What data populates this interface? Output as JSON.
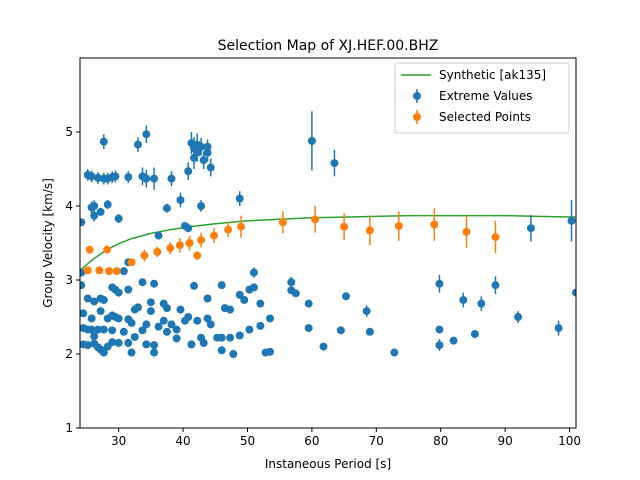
{
  "chart_data": {
    "type": "scatter",
    "title": "Selection Map of XJ.HEF.00.BHZ",
    "xlabel": "Instaneous Period [s]",
    "ylabel": "Group Velocity [km/s]",
    "xlim": [
      24,
      101
    ],
    "ylim": [
      1,
      6
    ],
    "xticks": [
      30,
      40,
      50,
      60,
      70,
      80,
      90,
      100
    ],
    "yticks": [
      1,
      2,
      3,
      4,
      5
    ],
    "legend_position": "top-right",
    "colors": {
      "extreme": "#1f77b4",
      "selected": "#ff7f0e",
      "synthetic": "#2ca02c"
    },
    "series": [
      {
        "name": "Synthetic [ak135]",
        "kind": "line",
        "x": [
          24,
          26,
          28,
          30,
          32,
          35,
          38,
          41,
          45,
          50,
          55,
          60,
          65,
          70,
          75,
          80,
          85,
          90,
          95,
          101
        ],
        "y": [
          3.13,
          3.28,
          3.4,
          3.49,
          3.56,
          3.63,
          3.68,
          3.72,
          3.76,
          3.8,
          3.82,
          3.84,
          3.85,
          3.86,
          3.87,
          3.87,
          3.87,
          3.87,
          3.86,
          3.85
        ]
      },
      {
        "name": "Extreme Values",
        "kind": "errorbar",
        "points": [
          [
            24.2,
            3.78,
            0.05
          ],
          [
            24.2,
            3.1,
            0.05
          ],
          [
            24.2,
            2.93,
            0.05
          ],
          [
            24.5,
            2.55,
            0.05
          ],
          [
            24.5,
            2.35,
            0.05
          ],
          [
            24.5,
            2.13,
            0.05
          ],
          [
            25.2,
            4.42,
            0.08
          ],
          [
            25.2,
            2.75,
            0.05
          ],
          [
            25.2,
            2.33,
            0.05
          ],
          [
            25.2,
            2.12,
            0.05
          ],
          [
            25.8,
            4.4,
            0.08
          ],
          [
            25.8,
            3.98,
            0.08
          ],
          [
            25.8,
            2.48,
            0.05
          ],
          [
            25.8,
            2.33,
            0.05
          ],
          [
            26.2,
            4.0,
            0.08
          ],
          [
            26.2,
            3.87,
            0.08
          ],
          [
            26.2,
            2.71,
            0.05
          ],
          [
            26.2,
            2.24,
            0.05
          ],
          [
            26.2,
            2.14,
            0.05
          ],
          [
            26.8,
            4.38,
            0.08
          ],
          [
            26.8,
            2.33,
            0.05
          ],
          [
            26.8,
            2.09,
            0.05
          ],
          [
            27.2,
            3.92,
            0.05
          ],
          [
            27.2,
            2.75,
            0.05
          ],
          [
            27.2,
            2.58,
            0.05
          ],
          [
            27.2,
            2.06,
            0.05
          ],
          [
            27.7,
            4.37,
            0.08
          ],
          [
            27.7,
            4.87,
            0.1
          ],
          [
            27.7,
            2.73,
            0.05
          ],
          [
            27.7,
            2.33,
            0.05
          ],
          [
            27.7,
            2.02,
            0.05
          ],
          [
            28.3,
            4.37,
            0.08
          ],
          [
            28.3,
            4.02,
            0.06
          ],
          [
            28.3,
            2.48,
            0.05
          ],
          [
            28.3,
            2.1,
            0.05
          ],
          [
            29.0,
            4.39,
            0.08
          ],
          [
            29.0,
            2.9,
            0.05
          ],
          [
            29.0,
            2.52,
            0.05
          ],
          [
            29.0,
            2.32,
            0.05
          ],
          [
            29.0,
            2.16,
            0.05
          ],
          [
            29.5,
            4.4,
            0.08
          ],
          [
            29.5,
            2.87,
            0.05
          ],
          [
            29.5,
            2.5,
            0.05
          ],
          [
            30.0,
            3.83,
            0.06
          ],
          [
            30.0,
            2.83,
            0.05
          ],
          [
            30.0,
            2.48,
            0.05
          ],
          [
            30.0,
            2.15,
            0.05
          ],
          [
            30.8,
            3.12,
            0.05
          ],
          [
            30.8,
            2.3,
            0.05
          ],
          [
            31.5,
            4.39,
            0.08
          ],
          [
            31.5,
            3.24,
            0.05
          ],
          [
            31.5,
            2.87,
            0.05
          ],
          [
            31.5,
            2.47,
            0.05
          ],
          [
            31.5,
            2.15,
            0.05
          ],
          [
            32.0,
            2.42,
            0.05
          ],
          [
            32.0,
            2.02,
            0.05
          ],
          [
            32.5,
            2.6,
            0.05
          ],
          [
            32.5,
            2.23,
            0.05
          ],
          [
            33.0,
            4.83,
            0.1
          ],
          [
            33.0,
            2.63,
            0.05
          ],
          [
            33.7,
            4.4,
            0.12
          ],
          [
            33.7,
            2.97,
            0.05
          ],
          [
            33.7,
            2.32,
            0.05
          ],
          [
            34.3,
            4.97,
            0.12
          ],
          [
            34.3,
            4.37,
            0.12
          ],
          [
            34.3,
            2.4,
            0.05
          ],
          [
            34.3,
            2.13,
            0.05
          ],
          [
            35.0,
            2.7,
            0.05
          ],
          [
            35.0,
            2.58,
            0.05
          ],
          [
            35.5,
            4.37,
            0.15
          ],
          [
            35.5,
            2.95,
            0.05
          ],
          [
            35.5,
            2.12,
            0.05
          ],
          [
            35.5,
            2.02,
            0.05
          ],
          [
            36.2,
            3.6,
            0.05
          ],
          [
            36.2,
            2.37,
            0.05
          ],
          [
            37.0,
            2.68,
            0.05
          ],
          [
            37.0,
            2.45,
            0.05
          ],
          [
            37.5,
            3.97,
            0.06
          ],
          [
            37.5,
            2.62,
            0.05
          ],
          [
            37.5,
            2.3,
            0.05
          ],
          [
            38.2,
            4.37,
            0.1
          ],
          [
            38.2,
            2.4,
            0.05
          ],
          [
            39.0,
            2.33,
            0.05
          ],
          [
            39.0,
            2.21,
            0.05
          ],
          [
            39.6,
            4.08,
            0.1
          ],
          [
            39.6,
            2.6,
            0.05
          ],
          [
            40.3,
            3.73,
            0.05
          ],
          [
            40.3,
            2.45,
            0.05
          ],
          [
            40.8,
            4.47,
            0.12
          ],
          [
            40.8,
            3.7,
            0.05
          ],
          [
            40.8,
            2.5,
            0.05
          ],
          [
            41.3,
            4.85,
            0.15
          ],
          [
            41.3,
            2.13,
            0.05
          ],
          [
            41.7,
            4.65,
            0.15
          ],
          [
            41.7,
            4.78,
            0.15
          ],
          [
            41.7,
            2.92,
            0.05
          ],
          [
            42.2,
            4.83,
            0.15
          ],
          [
            42.2,
            4.72,
            0.12
          ],
          [
            42.2,
            2.45,
            0.05
          ],
          [
            42.8,
            4.8,
            0.12
          ],
          [
            42.8,
            4.0,
            0.08
          ],
          [
            42.8,
            2.22,
            0.05
          ],
          [
            43.2,
            4.62,
            0.12
          ],
          [
            43.2,
            2.15,
            0.05
          ],
          [
            43.8,
            4.72,
            0.12
          ],
          [
            43.8,
            4.8,
            0.1
          ],
          [
            43.8,
            2.75,
            0.05
          ],
          [
            43.8,
            2.48,
            0.05
          ],
          [
            44.3,
            4.52,
            0.12
          ],
          [
            44.3,
            2.4,
            0.05
          ],
          [
            45.3,
            2.22,
            0.05
          ],
          [
            46.0,
            2.93,
            0.05
          ],
          [
            46.0,
            2.22,
            0.05
          ],
          [
            46.0,
            2.05,
            0.05
          ],
          [
            46.5,
            2.62,
            0.05
          ],
          [
            47.3,
            2.6,
            0.05
          ],
          [
            47.3,
            2.22,
            0.05
          ],
          [
            47.8,
            2.0,
            0.05
          ],
          [
            48.8,
            4.1,
            0.1
          ],
          [
            48.8,
            2.8,
            0.05
          ],
          [
            48.8,
            2.25,
            0.05
          ],
          [
            49.5,
            2.73,
            0.05
          ],
          [
            50.3,
            2.87,
            0.05
          ],
          [
            50.3,
            2.33,
            0.05
          ],
          [
            51.0,
            3.1,
            0.07
          ],
          [
            51.0,
            2.9,
            0.05
          ],
          [
            52.0,
            2.68,
            0.05
          ],
          [
            52.0,
            2.38,
            0.05
          ],
          [
            52.8,
            2.02,
            0.05
          ],
          [
            53.5,
            2.48,
            0.05
          ],
          [
            53.5,
            2.03,
            0.05
          ],
          [
            56.8,
            2.97,
            0.07
          ],
          [
            56.8,
            2.86,
            0.05
          ],
          [
            57.5,
            2.82,
            0.05
          ],
          [
            59.5,
            2.68,
            0.05
          ],
          [
            59.5,
            2.35,
            0.05
          ],
          [
            60.0,
            4.88,
            0.4
          ],
          [
            61.8,
            2.1,
            0.05
          ],
          [
            63.5,
            4.58,
            0.18
          ],
          [
            64.5,
            2.32,
            0.05
          ],
          [
            65.3,
            2.78,
            0.05
          ],
          [
            68.5,
            2.58,
            0.08
          ],
          [
            69.0,
            2.3,
            0.05
          ],
          [
            72.8,
            2.02,
            0.05
          ],
          [
            79.8,
            2.95,
            0.12
          ],
          [
            79.8,
            2.33,
            0.05
          ],
          [
            79.8,
            2.12,
            0.08
          ],
          [
            82.0,
            2.18,
            0.05
          ],
          [
            83.5,
            2.73,
            0.1
          ],
          [
            85.3,
            2.27,
            0.05
          ],
          [
            86.3,
            2.68,
            0.1
          ],
          [
            88.5,
            2.93,
            0.12
          ],
          [
            92.0,
            2.5,
            0.08
          ],
          [
            94.0,
            3.7,
            0.18
          ],
          [
            98.3,
            2.35,
            0.1
          ],
          [
            100.3,
            3.8,
            0.28
          ],
          [
            101.0,
            2.83,
            0.05
          ]
        ]
      },
      {
        "name": "Selected Points",
        "kind": "errorbar",
        "points": [
          [
            25.2,
            3.13,
            0.05
          ],
          [
            25.5,
            3.41,
            0.05
          ],
          [
            27.0,
            3.13,
            0.05
          ],
          [
            28.2,
            3.41,
            0.05
          ],
          [
            28.5,
            3.12,
            0.05
          ],
          [
            29.7,
            3.12,
            0.05
          ],
          [
            32.0,
            3.24,
            0.05
          ],
          [
            34.0,
            3.33,
            0.08
          ],
          [
            36.0,
            3.38,
            0.07
          ],
          [
            38.0,
            3.43,
            0.08
          ],
          [
            39.5,
            3.47,
            0.1
          ],
          [
            41.0,
            3.5,
            0.1
          ],
          [
            42.2,
            3.33,
            0.06
          ],
          [
            42.8,
            3.54,
            0.1
          ],
          [
            44.8,
            3.6,
            0.1
          ],
          [
            47.0,
            3.68,
            0.1
          ],
          [
            49.0,
            3.72,
            0.15
          ],
          [
            55.5,
            3.78,
            0.15
          ],
          [
            60.5,
            3.82,
            0.18
          ],
          [
            65.0,
            3.72,
            0.18
          ],
          [
            69.0,
            3.67,
            0.2
          ],
          [
            73.5,
            3.73,
            0.2
          ],
          [
            79.0,
            3.75,
            0.22
          ],
          [
            84.0,
            3.65,
            0.22
          ],
          [
            88.5,
            3.58,
            0.22
          ]
        ]
      }
    ]
  }
}
